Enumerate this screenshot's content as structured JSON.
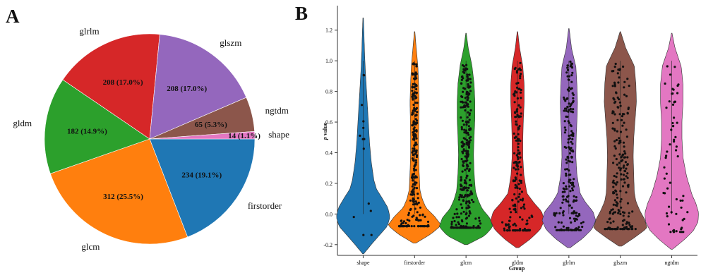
{
  "panels": {
    "a": "A",
    "b": "B"
  },
  "chart_data": [
    {
      "type": "pie",
      "title": "",
      "slices": [
        {
          "name": "firstorder",
          "value": 234,
          "label": "234 (19.1%)",
          "color": "#1f77b4"
        },
        {
          "name": "glcm",
          "value": 312,
          "label": "312 (25.5%)",
          "color": "#ff7f0e"
        },
        {
          "name": "gldm",
          "value": 182,
          "label": "182 (14.9%)",
          "color": "#2ca02c"
        },
        {
          "name": "glrlm",
          "value": 208,
          "label": "208 (17.0%)",
          "color": "#d62728"
        },
        {
          "name": "glszm",
          "value": 208,
          "label": "208 (17.0%)",
          "color": "#9467bd"
        },
        {
          "name": "ngtdm",
          "value": 65,
          "label": "65 (5.3%)",
          "color": "#8c564b"
        },
        {
          "name": "shape",
          "value": 14,
          "label": "14 (1.1%)",
          "color": "#e377c2"
        }
      ]
    },
    {
      "type": "violin",
      "title": "",
      "xlabel": "Group",
      "ylabel_italic": "p",
      "ylabel_rest": " value",
      "ylim": [
        -0.27,
        1.36
      ],
      "yticks": [
        "-0.2",
        "0.0",
        "0.2",
        "0.4",
        "0.6",
        "0.8",
        "1.0",
        "1.2"
      ],
      "groups": [
        {
          "name": "shape",
          "color": "#1f77b4",
          "n": 14,
          "range": [
            -0.26,
            1.28
          ],
          "profile": [
            [
              0,
              0.02
            ],
            [
              0.5,
              0.3
            ],
            [
              1,
              0.6
            ],
            [
              1.5,
              0.9
            ],
            [
              2,
              1
            ],
            [
              2.5,
              0.92
            ],
            [
              3,
              0.72
            ],
            [
              3.5,
              0.5
            ],
            [
              4,
              0.4
            ],
            [
              5,
              0.3
            ],
            [
              6,
              0.24
            ],
            [
              7,
              0.2
            ],
            [
              8,
              0.16
            ],
            [
              9,
              0.12
            ],
            [
              10,
              0.08
            ],
            [
              11,
              0.05
            ],
            [
              12,
              0.03
            ],
            [
              12.8,
              0.01
            ]
          ]
        },
        {
          "name": "firstorder",
          "color": "#ff7f0e",
          "n": 234,
          "range": [
            -0.19,
            1.19
          ],
          "profile": [
            [
              0,
              0.05
            ],
            [
              0.5,
              0.6
            ],
            [
              1,
              1
            ],
            [
              1.5,
              0.75
            ],
            [
              2,
              0.42
            ],
            [
              2.5,
              0.28
            ],
            [
              3,
              0.2
            ],
            [
              4,
              0.17
            ],
            [
              5,
              0.15
            ],
            [
              6,
              0.15
            ],
            [
              7,
              0.16
            ],
            [
              8,
              0.17
            ],
            [
              9,
              0.15
            ],
            [
              10,
              0.12
            ],
            [
              11,
              0.06
            ],
            [
              11.9,
              0.01
            ]
          ]
        },
        {
          "name": "glcm",
          "color": "#2ca02c",
          "n": 312,
          "range": [
            -0.2,
            1.18
          ],
          "profile": [
            [
              0,
              0.05
            ],
            [
              0.5,
              0.7
            ],
            [
              1,
              1
            ],
            [
              1.5,
              0.88
            ],
            [
              2,
              0.6
            ],
            [
              2.5,
              0.45
            ],
            [
              3,
              0.35
            ],
            [
              4,
              0.3
            ],
            [
              5,
              0.28
            ],
            [
              6,
              0.3
            ],
            [
              7,
              0.33
            ],
            [
              8,
              0.33
            ],
            [
              9,
              0.3
            ],
            [
              10,
              0.22
            ],
            [
              11,
              0.08
            ],
            [
              11.8,
              0.01
            ]
          ]
        },
        {
          "name": "gldm",
          "color": "#d62728",
          "n": 182,
          "range": [
            -0.22,
            1.19
          ],
          "profile": [
            [
              0,
              0.05
            ],
            [
              0.5,
              0.5
            ],
            [
              1,
              0.85
            ],
            [
              1.5,
              1
            ],
            [
              2,
              0.9
            ],
            [
              2.5,
              0.6
            ],
            [
              3,
              0.35
            ],
            [
              4,
              0.24
            ],
            [
              5,
              0.2
            ],
            [
              6,
              0.2
            ],
            [
              7,
              0.22
            ],
            [
              8,
              0.25
            ],
            [
              9,
              0.25
            ],
            [
              10,
              0.2
            ],
            [
              11,
              0.08
            ],
            [
              11.9,
              0.01
            ]
          ]
        },
        {
          "name": "glrlm",
          "color": "#9467bd",
          "n": 208,
          "range": [
            -0.22,
            1.21
          ],
          "profile": [
            [
              0,
              0.05
            ],
            [
              0.5,
              0.5
            ],
            [
              1,
              0.85
            ],
            [
              1.5,
              1
            ],
            [
              2,
              0.9
            ],
            [
              2.5,
              0.62
            ],
            [
              3,
              0.42
            ],
            [
              4,
              0.3
            ],
            [
              5,
              0.26
            ],
            [
              6,
              0.27
            ],
            [
              7,
              0.3
            ],
            [
              8,
              0.32
            ],
            [
              9,
              0.3
            ],
            [
              10,
              0.26
            ],
            [
              11,
              0.1
            ],
            [
              12.1,
              0.01
            ]
          ]
        },
        {
          "name": "glszm",
          "color": "#8c564b",
          "n": 208,
          "range": [
            -0.21,
            1.19
          ],
          "profile": [
            [
              0,
              0.05
            ],
            [
              0.5,
              0.55
            ],
            [
              1,
              1
            ],
            [
              1.5,
              0.9
            ],
            [
              2,
              0.72
            ],
            [
              2.5,
              0.58
            ],
            [
              3,
              0.52
            ],
            [
              4,
              0.5
            ],
            [
              5,
              0.48
            ],
            [
              6,
              0.5
            ],
            [
              7,
              0.55
            ],
            [
              8,
              0.6
            ],
            [
              9,
              0.58
            ],
            [
              10,
              0.52
            ],
            [
              11,
              0.2
            ],
            [
              11.9,
              0.01
            ]
          ]
        },
        {
          "name": "ngtdm",
          "color": "#e377c2",
          "n": 65,
          "range": [
            -0.23,
            1.18
          ],
          "profile": [
            [
              0,
              0.03
            ],
            [
              0.5,
              0.45
            ],
            [
              1,
              0.8
            ],
            [
              1.5,
              0.98
            ],
            [
              2,
              1
            ],
            [
              2.5,
              0.9
            ],
            [
              3,
              0.75
            ],
            [
              4,
              0.55
            ],
            [
              5,
              0.42
            ],
            [
              6,
              0.38
            ],
            [
              7,
              0.38
            ],
            [
              8,
              0.42
            ],
            [
              9,
              0.42
            ],
            [
              10,
              0.35
            ],
            [
              11,
              0.12
            ],
            [
              11.8,
              0.01
            ]
          ]
        }
      ]
    }
  ]
}
